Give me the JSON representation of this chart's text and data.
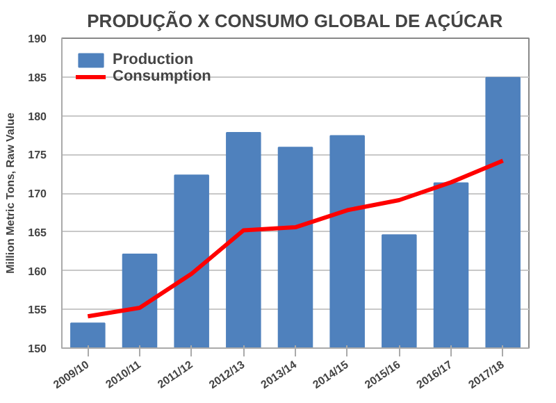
{
  "chart_data": {
    "type": "bar",
    "title": "PRODUÇÃO X CONSUMO GLOBAL DE AÇÚCAR",
    "ylabel": "Million Metric Tons, Raw Value",
    "categories": [
      "2009/10",
      "2010/11",
      "2011/12",
      "2012/13",
      "2013/14",
      "2014/15",
      "2015/16",
      "2016/17",
      "2017/18"
    ],
    "series": [
      {
        "name": "Production",
        "color": "#4f81bd",
        "values": [
          153.2,
          162.1,
          172.3,
          177.8,
          175.9,
          177.4,
          164.6,
          171.3,
          184.9
        ]
      },
      {
        "name": "Consumption",
        "type": "line",
        "color": "#ff0000",
        "values": [
          154.1,
          155.2,
          159.6,
          165.2,
          165.6,
          167.8,
          169.1,
          171.4,
          174.2
        ]
      }
    ],
    "ylim": [
      150,
      190
    ],
    "yticks": [
      150,
      155,
      160,
      165,
      170,
      175,
      180,
      185,
      190
    ],
    "grid": "y",
    "legend": "top left"
  }
}
